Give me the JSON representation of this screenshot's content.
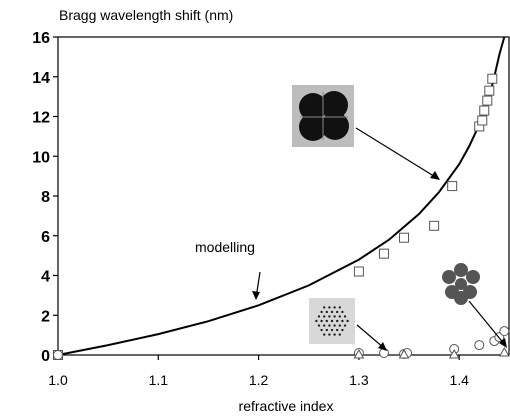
{
  "chart_data": {
    "type": "scatter",
    "ylabel": "Bragg wavelength shift (nm)",
    "xlabel": "refractive index",
    "xlim": [
      1.0,
      1.45
    ],
    "ylim": [
      0,
      16
    ],
    "x_ticks": [
      "1.0",
      "1.1",
      "1.2",
      "1.3",
      "1.4"
    ],
    "x_tick_values": [
      1.0,
      1.1,
      1.2,
      1.3,
      1.4
    ],
    "y_ticks": [
      "0",
      "2",
      "4",
      "6",
      "8",
      "10",
      "12",
      "14",
      "16"
    ],
    "y_tick_values": [
      0,
      2,
      4,
      6,
      8,
      10,
      12,
      14,
      16
    ],
    "grid": false,
    "series": [
      {
        "name": "modelling",
        "kind": "line",
        "points": [
          [
            1.0,
            0
          ],
          [
            1.05,
            0.5
          ],
          [
            1.1,
            1.05
          ],
          [
            1.15,
            1.7
          ],
          [
            1.2,
            2.5
          ],
          [
            1.25,
            3.5
          ],
          [
            1.3,
            4.8
          ],
          [
            1.33,
            5.8
          ],
          [
            1.36,
            7.1
          ],
          [
            1.38,
            8.2
          ],
          [
            1.4,
            9.6
          ],
          [
            1.41,
            10.5
          ],
          [
            1.42,
            11.6
          ],
          [
            1.43,
            13.0
          ],
          [
            1.435,
            14.0
          ],
          [
            1.44,
            15.1
          ],
          [
            1.445,
            16.0
          ]
        ]
      },
      {
        "kind": "square",
        "points": [
          [
            1.0,
            0
          ],
          [
            1.3,
            4.2
          ],
          [
            1.325,
            5.1
          ],
          [
            1.345,
            5.9
          ],
          [
            1.375,
            6.5
          ],
          [
            1.393,
            8.5
          ],
          [
            1.42,
            11.5
          ],
          [
            1.423,
            11.8
          ],
          [
            1.425,
            12.3
          ],
          [
            1.428,
            12.8
          ],
          [
            1.43,
            13.3
          ],
          [
            1.433,
            13.9
          ]
        ]
      },
      {
        "kind": "circle",
        "points": [
          [
            1.0,
            0
          ],
          [
            1.3,
            0.1
          ],
          [
            1.325,
            0.1
          ],
          [
            1.345,
            0.05
          ],
          [
            1.348,
            0.1
          ],
          [
            1.395,
            0.3
          ],
          [
            1.42,
            0.5
          ],
          [
            1.435,
            0.7
          ],
          [
            1.44,
            0.9
          ],
          [
            1.445,
            1.2
          ]
        ]
      },
      {
        "kind": "triangle",
        "points": [
          [
            1.3,
            0
          ],
          [
            1.345,
            0
          ],
          [
            1.395,
            0
          ],
          [
            1.445,
            0.1
          ]
        ]
      }
    ],
    "annotations": [
      {
        "text": "modelling",
        "x": 1.15,
        "y": 5.2
      }
    ]
  }
}
